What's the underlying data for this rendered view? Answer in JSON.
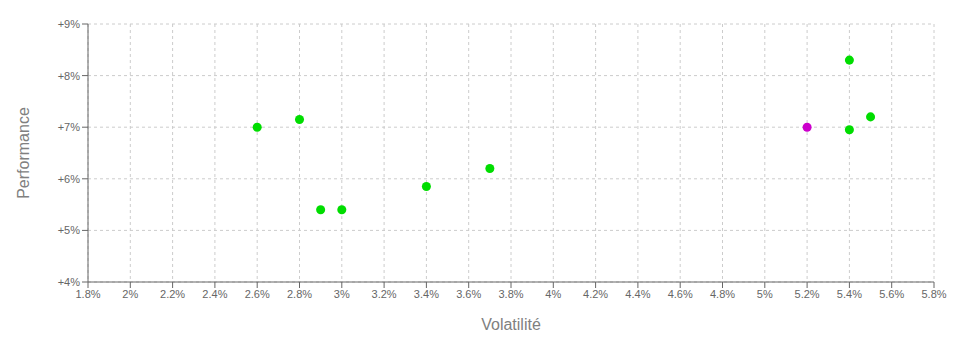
{
  "chart_data": {
    "type": "scatter",
    "xlabel": "Volatilité",
    "ylabel": "Performance",
    "xlim": [
      0.018,
      0.058
    ],
    "ylim": [
      0.04,
      0.09
    ],
    "xticks": [
      {
        "value": 0.018,
        "label": "1.8%"
      },
      {
        "value": 0.02,
        "label": "2%"
      },
      {
        "value": 0.022,
        "label": "2.2%"
      },
      {
        "value": 0.024,
        "label": "2.4%"
      },
      {
        "value": 0.026,
        "label": "2.6%"
      },
      {
        "value": 0.028,
        "label": "2.8%"
      },
      {
        "value": 0.03,
        "label": "3%"
      },
      {
        "value": 0.032,
        "label": "3.2%"
      },
      {
        "value": 0.034,
        "label": "3.4%"
      },
      {
        "value": 0.036,
        "label": "3.6%"
      },
      {
        "value": 0.038,
        "label": "3.8%"
      },
      {
        "value": 0.04,
        "label": "4%"
      },
      {
        "value": 0.042,
        "label": "4.2%"
      },
      {
        "value": 0.044,
        "label": "4.4%"
      },
      {
        "value": 0.046,
        "label": "4.6%"
      },
      {
        "value": 0.048,
        "label": "4.8%"
      },
      {
        "value": 0.05,
        "label": "5%"
      },
      {
        "value": 0.052,
        "label": "5.2%"
      },
      {
        "value": 0.054,
        "label": "5.4%"
      },
      {
        "value": 0.056,
        "label": "5.6%"
      },
      {
        "value": 0.058,
        "label": "5.8%"
      }
    ],
    "yticks": [
      {
        "value": 0.04,
        "label": "+4%"
      },
      {
        "value": 0.05,
        "label": "+5%"
      },
      {
        "value": 0.06,
        "label": "+6%"
      },
      {
        "value": 0.07,
        "label": "+7%"
      },
      {
        "value": 0.08,
        "label": "+8%"
      },
      {
        "value": 0.09,
        "label": "+9%"
      }
    ],
    "grid": true,
    "series": [
      {
        "color": "#00dd00",
        "x": [
          0.026,
          0.028,
          0.029,
          0.03,
          0.034,
          0.037,
          0.054,
          0.055
        ],
        "values": [
          0.07,
          0.0715,
          0.054,
          0.054,
          0.0585,
          0.062,
          0.083,
          0.072
        ]
      },
      {
        "color": "#cc00cc",
        "x": [
          0.052
        ],
        "values": [
          0.07
        ]
      },
      {
        "color": "#00dd00",
        "x": [
          0.054
        ],
        "values": [
          0.0695
        ]
      }
    ]
  }
}
